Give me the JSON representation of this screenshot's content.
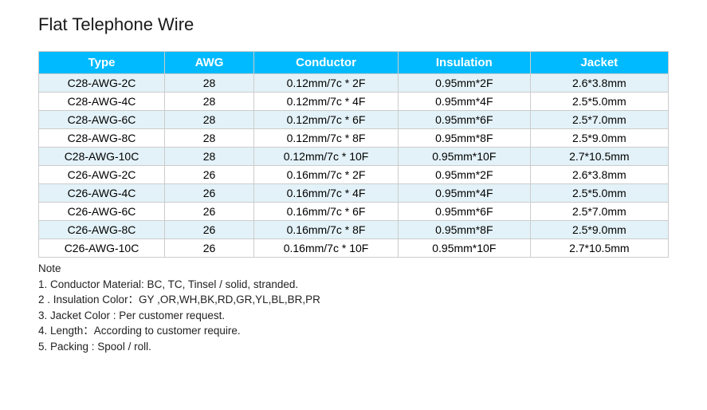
{
  "title": "Flat Telephone Wire",
  "table": {
    "header_bg": "#00baff",
    "header_fg": "#ffffff",
    "row_even_bg": "#e3f2f8",
    "row_odd_bg": "#ffffff",
    "border_color": "#cccccc",
    "columns": [
      "Type",
      "AWG",
      "Conductor",
      "Insulation",
      "Jacket"
    ],
    "rows": [
      [
        "C28-AWG-2C",
        "28",
        "0.12mm/7c * 2F",
        "0.95mm*2F",
        "2.6*3.8mm"
      ],
      [
        "C28-AWG-4C",
        "28",
        "0.12mm/7c * 4F",
        "0.95mm*4F",
        "2.5*5.0mm"
      ],
      [
        "C28-AWG-6C",
        "28",
        "0.12mm/7c * 6F",
        "0.95mm*6F",
        "2.5*7.0mm"
      ],
      [
        "C28-AWG-8C",
        "28",
        "0.12mm/7c * 8F",
        "0.95mm*8F",
        "2.5*9.0mm"
      ],
      [
        "C28-AWG-10C",
        "28",
        "0.12mm/7c * 10F",
        "0.95mm*10F",
        "2.7*10.5mm"
      ],
      [
        "C26-AWG-2C",
        "26",
        "0.16mm/7c * 2F",
        "0.95mm*2F",
        "2.6*3.8mm"
      ],
      [
        "C26-AWG-4C",
        "26",
        "0.16mm/7c * 4F",
        "0.95mm*4F",
        "2.5*5.0mm"
      ],
      [
        "C26-AWG-6C",
        "26",
        "0.16mm/7c * 6F",
        "0.95mm*6F",
        "2.5*7.0mm"
      ],
      [
        "C26-AWG-8C",
        "26",
        "0.16mm/7c * 8F",
        "0.95mm*8F",
        "2.5*9.0mm"
      ],
      [
        "C26-AWG-10C",
        "26",
        "0.16mm/7c * 10F",
        "0.95mm*10F",
        "2.7*10.5mm"
      ]
    ]
  },
  "notes": {
    "title": "Note",
    "items": [
      "1.  Conductor Material: BC, TC, Tinsel / solid, stranded.",
      "2 . Insulation Color：GY ,OR,WH,BK,RD,GR,YL,BL,BR,PR",
      "3. Jacket Color : Per customer request.",
      "4. Length：According to customer require.",
      "5. Packing : Spool / roll."
    ]
  }
}
